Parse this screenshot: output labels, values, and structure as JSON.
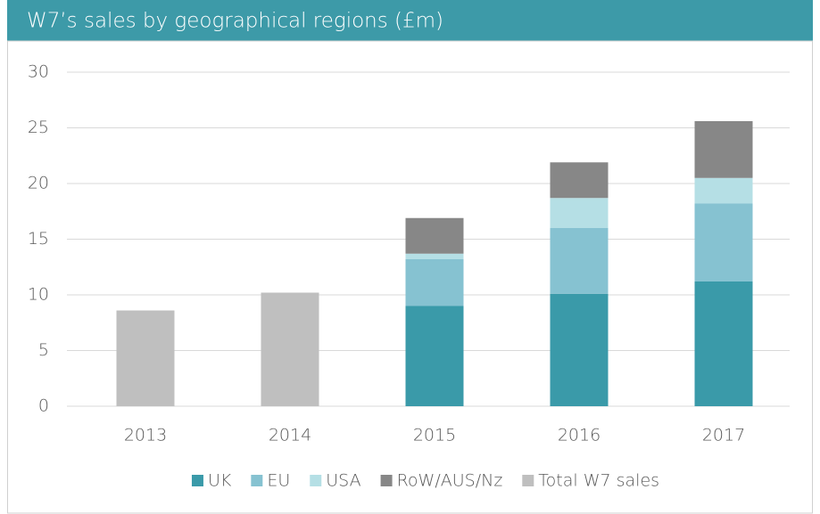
{
  "chart_data": {
    "type": "stacked_bar",
    "title": "W7’s sales by geographical regions (£m)",
    "categories": [
      "2013",
      "2014",
      "2015",
      "2016",
      "2017"
    ],
    "series": [
      {
        "name": "UK",
        "color": "#3a9aa9",
        "values": [
          null,
          null,
          9.0,
          10.1,
          11.2
        ]
      },
      {
        "name": "EU",
        "color": "#86c2d1",
        "values": [
          null,
          null,
          4.2,
          5.9,
          7.0
        ]
      },
      {
        "name": "USA",
        "color": "#b5dfe5",
        "values": [
          null,
          null,
          0.5,
          2.7,
          2.3
        ]
      },
      {
        "name": "RoW/AUS/Nz",
        "color": "#878787",
        "values": [
          null,
          null,
          3.2,
          3.2,
          5.1
        ]
      },
      {
        "name": "Total W7 sales",
        "color": "#bfbfbf",
        "values": [
          8.6,
          10.2,
          null,
          null,
          null
        ]
      }
    ],
    "ylim": [
      0,
      30
    ],
    "yticks": [
      0,
      5,
      10,
      15,
      20,
      25,
      30
    ],
    "grid": true,
    "legend": "bottom"
  }
}
